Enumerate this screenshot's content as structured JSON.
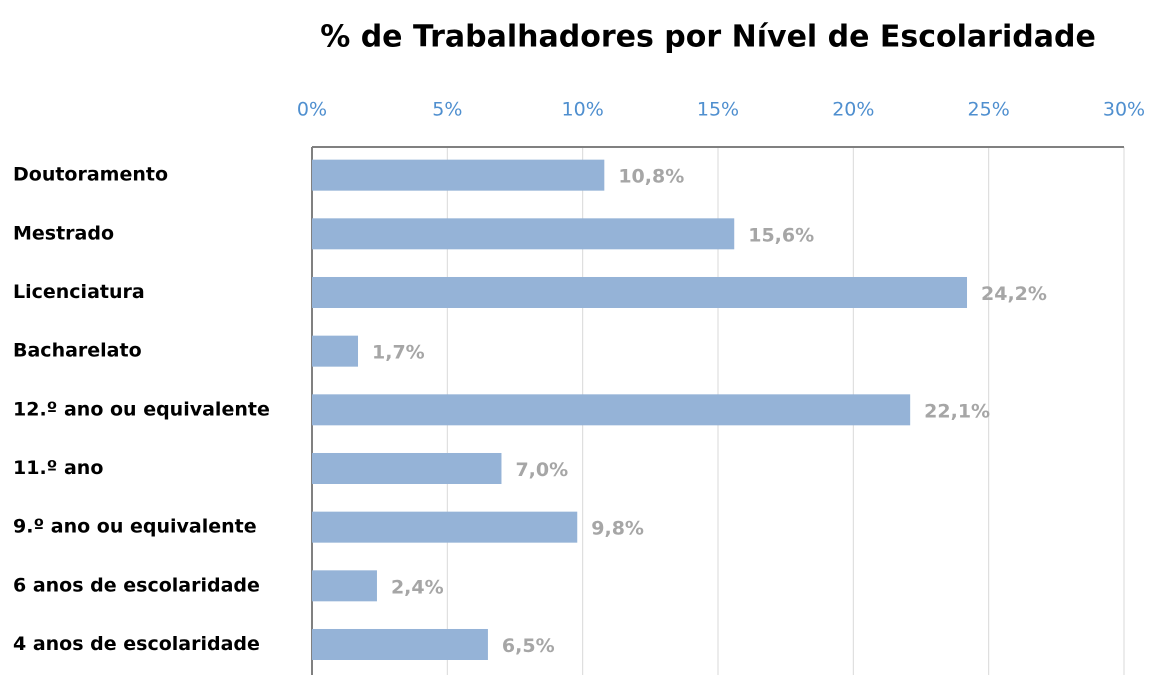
{
  "chart_data": {
    "type": "bar",
    "orientation": "horizontal",
    "title": "% de Trabalhadores por Nível de Escolaridade",
    "categories": [
      "Doutoramento",
      "Mestrado",
      "Licenciatura",
      "Bacharelato",
      "12.º ano ou equivalente",
      "11.º ano",
      "9.º ano ou equivalente",
      "6 anos de escolaridade",
      "4 anos de escolaridade"
    ],
    "values": [
      10.8,
      15.6,
      24.2,
      1.7,
      22.1,
      7.0,
      9.8,
      2.4,
      6.5
    ],
    "value_labels": [
      "10,8%",
      "15,6%",
      "24,2%",
      "1,7%",
      "22,1%",
      "7,0%",
      "9,8%",
      "2,4%",
      "6,5%"
    ],
    "color": "#95b3d7",
    "xlim": [
      0,
      30
    ],
    "xticks": [
      {
        "value": 0,
        "label": "0%"
      },
      {
        "value": 5,
        "label": "5%"
      },
      {
        "value": 10,
        "label": "10%"
      },
      {
        "value": 15,
        "label": "15%"
      },
      {
        "value": 20,
        "label": "20%"
      },
      {
        "value": 25,
        "label": "25%"
      },
      {
        "value": 30,
        "label": "30%"
      }
    ],
    "grid": true
  }
}
